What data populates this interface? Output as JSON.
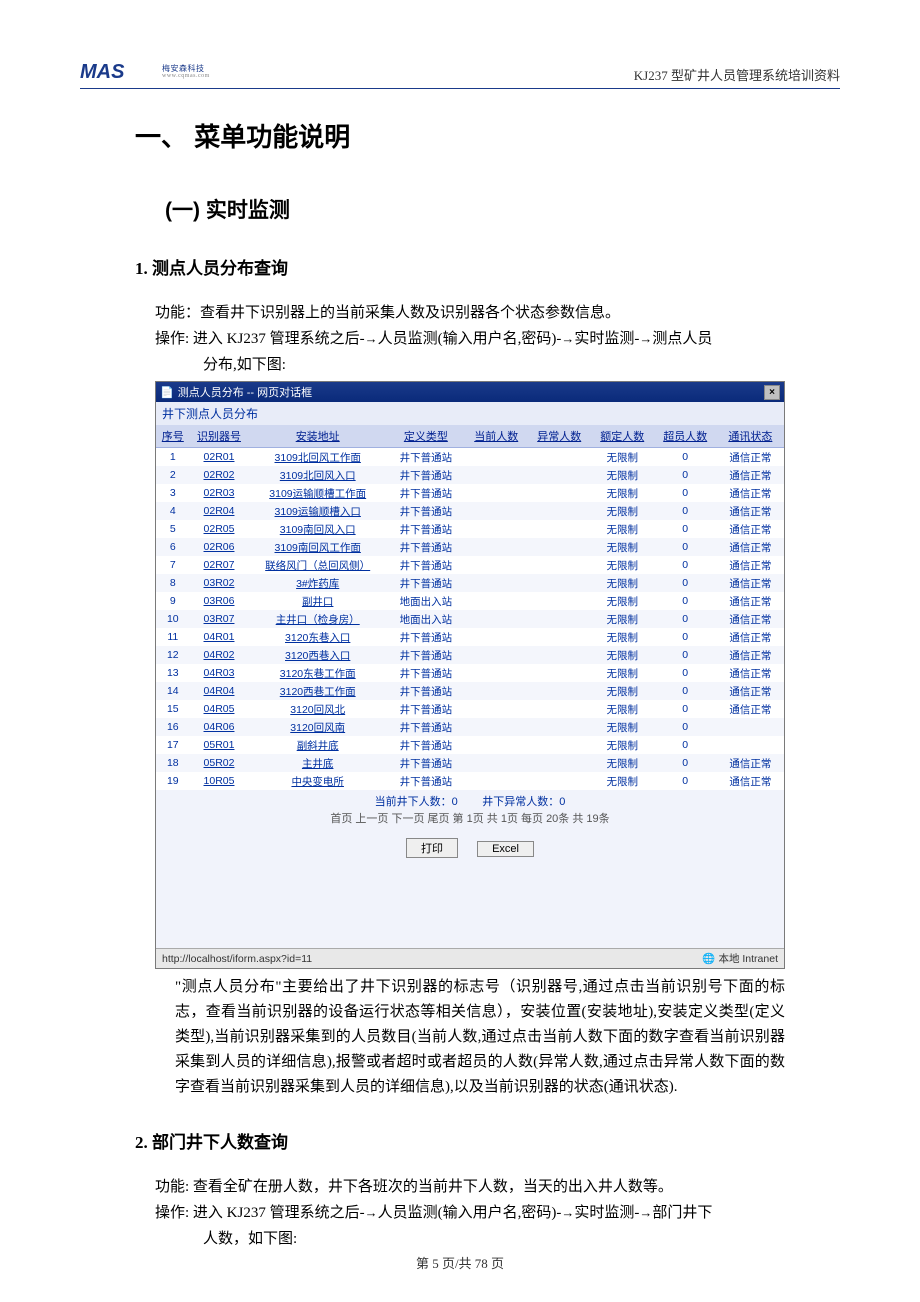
{
  "header": {
    "logo_text": "MAS",
    "logo_sub": "梅安森科技",
    "logo_url_sub": "www.cqmas.com",
    "right": "KJ237 型矿井人员管理系统培训资料"
  },
  "h1": "一、 菜单功能说明",
  "h2": "(一)   实时监测",
  "sec1": {
    "title": "1.   测点人员分布查询",
    "fn_label": "功能：",
    "fn_text": "查看井下识别器上的当前采集人数及识别器各个状态参数信息。",
    "op_label": "操作:",
    "op_text_1": " 进入 KJ237 管理系统之后-",
    "op_text_arrow1": "→",
    "op_text_2": "人员监测(输入用户名,密码)-",
    "op_text_arrow2": "→",
    "op_text_3": "实时监测-",
    "op_text_arrow3": "→",
    "op_text_4": "测点人员",
    "op_text_5": "分布,如下图:"
  },
  "screenshot": {
    "titlebar_icon": "📄",
    "titlebar": "测点人员分布 -- 网页对话框",
    "close": "×",
    "subtitle": "井下测点人员分布",
    "columns": [
      "序号",
      "识别器号",
      "安装地址",
      "定义类型",
      "当前人数",
      "异常人数",
      "额定人数",
      "超员人数",
      "通讯状态"
    ],
    "rows": [
      [
        "1",
        "02R01",
        "3109北回风工作面",
        "井下普通站",
        "",
        "",
        "无限制",
        "0",
        "通信正常"
      ],
      [
        "2",
        "02R02",
        "3109北回风入口",
        "井下普通站",
        "",
        "",
        "无限制",
        "0",
        "通信正常"
      ],
      [
        "3",
        "02R03",
        "3109运输顺槽工作面",
        "井下普通站",
        "",
        "",
        "无限制",
        "0",
        "通信正常"
      ],
      [
        "4",
        "02R04",
        "3109运输顺槽入口",
        "井下普通站",
        "",
        "",
        "无限制",
        "0",
        "通信正常"
      ],
      [
        "5",
        "02R05",
        "3109南回风入口",
        "井下普通站",
        "",
        "",
        "无限制",
        "0",
        "通信正常"
      ],
      [
        "6",
        "02R06",
        "3109南回风工作面",
        "井下普通站",
        "",
        "",
        "无限制",
        "0",
        "通信正常"
      ],
      [
        "7",
        "02R07",
        "联络风门（总回风侧）",
        "井下普通站",
        "",
        "",
        "无限制",
        "0",
        "通信正常"
      ],
      [
        "8",
        "03R02",
        "3#炸药库",
        "井下普通站",
        "",
        "",
        "无限制",
        "0",
        "通信正常"
      ],
      [
        "9",
        "03R06",
        "副井口",
        "地面出入站",
        "",
        "",
        "无限制",
        "0",
        "通信正常"
      ],
      [
        "10",
        "03R07",
        "主井口（检身房）",
        "地面出入站",
        "",
        "",
        "无限制",
        "0",
        "通信正常"
      ],
      [
        "11",
        "04R01",
        "3120东巷入口",
        "井下普通站",
        "",
        "",
        "无限制",
        "0",
        "通信正常"
      ],
      [
        "12",
        "04R02",
        "3120西巷入口",
        "井下普通站",
        "",
        "",
        "无限制",
        "0",
        "通信正常"
      ],
      [
        "13",
        "04R03",
        "3120东巷工作面",
        "井下普通站",
        "",
        "",
        "无限制",
        "0",
        "通信正常"
      ],
      [
        "14",
        "04R04",
        "3120西巷工作面",
        "井下普通站",
        "",
        "",
        "无限制",
        "0",
        "通信正常"
      ],
      [
        "15",
        "04R05",
        "3120回风北",
        "井下普通站",
        "",
        "",
        "无限制",
        "0",
        "通信正常"
      ],
      [
        "16",
        "04R06",
        "3120回风南",
        "井下普通站",
        "",
        "",
        "无限制",
        "0",
        ""
      ],
      [
        "17",
        "05R01",
        "副斜井底",
        "井下普通站",
        "",
        "",
        "无限制",
        "0",
        ""
      ],
      [
        "18",
        "05R02",
        "主井底",
        "井下普通站",
        "",
        "",
        "无限制",
        "0",
        "通信正常"
      ],
      [
        "19",
        "10R05",
        "中央变电所",
        "井下普通站",
        "",
        "",
        "无限制",
        "0",
        "通信正常"
      ]
    ],
    "summary_left": "当前井下人数：0",
    "summary_right": "井下异常人数：0",
    "pager": "首页 上一页 下一页 尾页 第 1页 共 1页 每页 20条 共 19条",
    "btn_print": "打印",
    "btn_excel": "Excel",
    "status_url": "http://localhost/iform.aspx?id=11",
    "status_zone_icon": "🌐",
    "status_zone": "本地 Intranet"
  },
  "body1": "\"测点人员分布\"主要给出了井下识别器的标志号（识别器号,通过点击当前识别号下面的标志，查看当前识别器的设备运行状态等相关信息），安装位置(安装地址),安装定义类型(定义类型),当前识别器采集到的人员数目(当前人数,通过点击当前人数下面的数字查看当前识别器采集到人员的详细信息),报警或者超时或者超员的人数(异常人数,通过点击异常人数下面的数字查看当前识别器采集到人员的详细信息),以及当前识别器的状态(通讯状态).",
  "sec2": {
    "title": "2.   部门井下人数查询",
    "fn_label": "功能:",
    "fn_text": " 查看全矿在册人数，井下各班次的当前井下人数，当天的出入井人数等。",
    "op_label": "操作:",
    "op_text_1": " 进入 KJ237 管理系统之后-",
    "op_text_arrow1": "→",
    "op_text_2": "人员监测(输入用户名,密码)-",
    "op_text_arrow2": "→",
    "op_text_3": "实时监测-",
    "op_text_arrow3": "→",
    "op_text_4": "部门井下",
    "op_text_5": "人数，如下图:"
  },
  "footer": "第 5 页/共 78 页"
}
